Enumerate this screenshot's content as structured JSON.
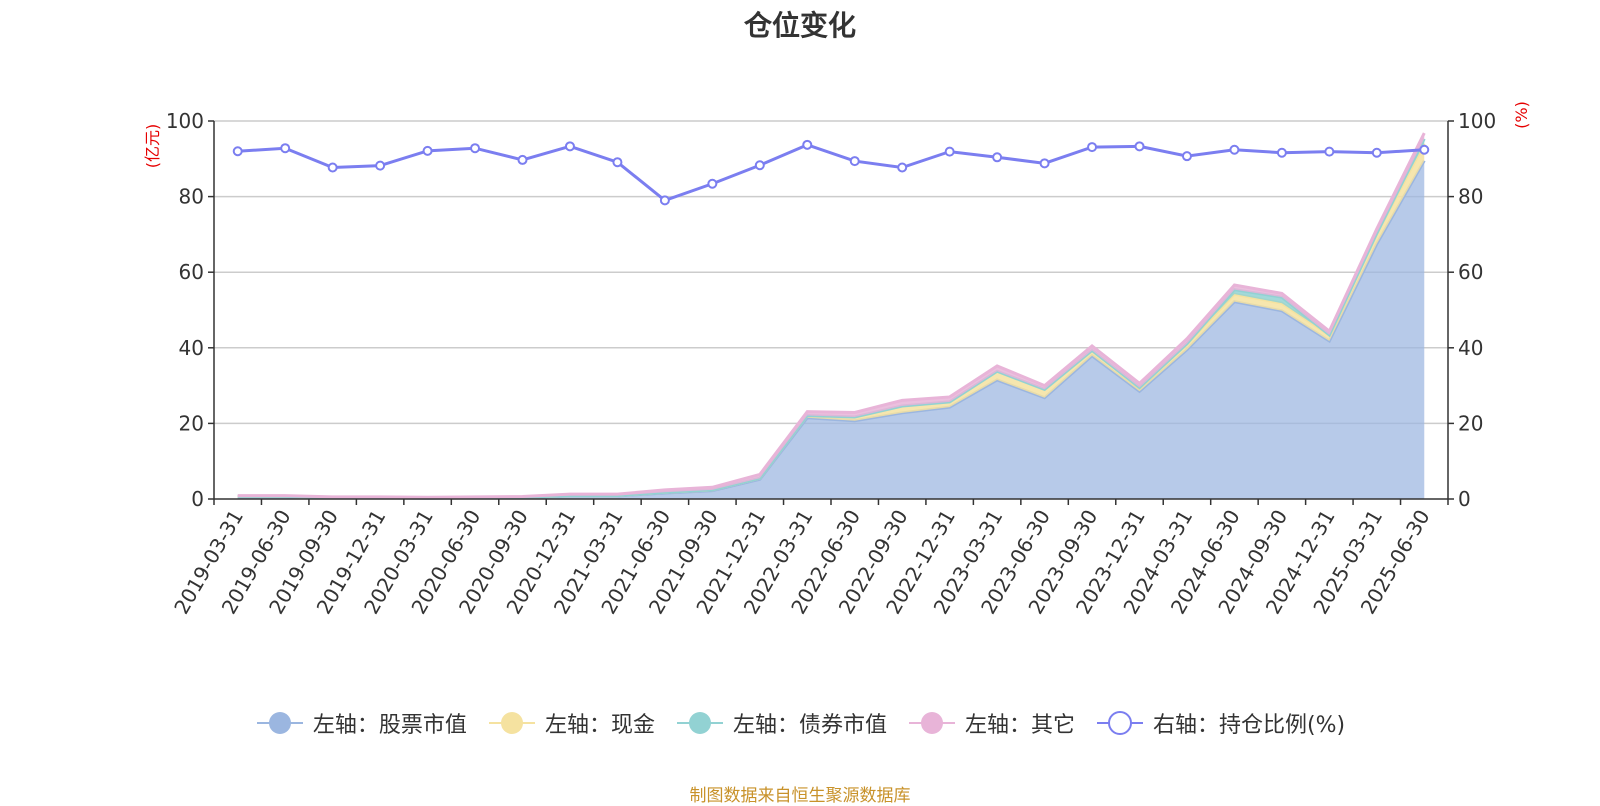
{
  "chart_data": {
    "type": "area",
    "title": "仓位变化",
    "ylabel_left": "(亿元)",
    "ylabel_right": "(%)",
    "ylim_left": [
      0,
      100
    ],
    "ylim_right": [
      0,
      100
    ],
    "yticks_left": [
      "0",
      "20",
      "40",
      "60",
      "80",
      "100"
    ],
    "yticks_right": [
      "0",
      "20",
      "40",
      "60",
      "80",
      "100"
    ],
    "grid": true,
    "legend_position": "bottom",
    "categories": [
      "2019-03-31",
      "2019-06-30",
      "2019-09-30",
      "2019-12-31",
      "2020-03-31",
      "2020-06-30",
      "2020-09-30",
      "2020-12-31",
      "2021-03-31",
      "2021-06-30",
      "2021-09-30",
      "2021-12-31",
      "2022-03-31",
      "2022-06-30",
      "2022-09-30",
      "2022-12-31",
      "2023-03-31",
      "2023-06-30",
      "2023-09-30",
      "2023-12-31",
      "2024-03-31",
      "2024-06-30",
      "2024-09-30",
      "2024-12-31",
      "2025-03-31",
      "2025-06-30"
    ],
    "series": [
      {
        "name": "左轴：股票市值",
        "axis": "left",
        "stacked": true,
        "color": "#9bb6e0",
        "values": [
          0.6,
          0.6,
          0.3,
          0.3,
          0.2,
          0.3,
          0.4,
          0.8,
          0.8,
          1.6,
          2.2,
          5.2,
          21.5,
          20.7,
          22.8,
          24.3,
          31.5,
          26.8,
          37.9,
          28.5,
          39.5,
          52.2,
          49.8,
          41.8,
          67.5,
          89.5
        ]
      },
      {
        "name": "左轴：现金",
        "axis": "left",
        "stacked": true,
        "color": "#f5e2a0",
        "values": [
          0.1,
          0.1,
          0.05,
          0.05,
          0.05,
          0.05,
          0.05,
          0.1,
          0.1,
          0.2,
          0.2,
          0.3,
          0.6,
          1.0,
          1.8,
          1.4,
          2.3,
          2.2,
          1.4,
          1.0,
          1.6,
          2.0,
          2.0,
          1.6,
          2.8,
          4.5
        ]
      },
      {
        "name": "左轴：债券市值",
        "axis": "left",
        "stacked": true,
        "color": "#92d2d3",
        "values": [
          0,
          0,
          0,
          0,
          0,
          0,
          0,
          0,
          0,
          0,
          0,
          0,
          0,
          0,
          0,
          0,
          0,
          0,
          0,
          0,
          0,
          1.2,
          1.6,
          0,
          0,
          1.3
        ]
      },
      {
        "name": "左轴：其它",
        "axis": "left",
        "stacked": true,
        "color": "#e8b4d8",
        "values": [
          0.2,
          0.2,
          0.2,
          0.2,
          0.2,
          0.2,
          0.2,
          0.4,
          0.4,
          0.6,
          0.7,
          1.0,
          1.0,
          1.2,
          1.5,
          1.3,
          1.4,
          1.0,
          1.2,
          1.1,
          1.3,
          1.2,
          1.0,
          1.0,
          1.2,
          1.5
        ]
      },
      {
        "name": "右轴：持仓比例(%)",
        "axis": "right",
        "type": "line",
        "color": "#7b7ef0",
        "values": [
          92.0,
          92.8,
          87.7,
          88.2,
          92.1,
          92.8,
          89.7,
          93.3,
          89.1,
          79.0,
          83.4,
          88.3,
          93.7,
          89.4,
          87.7,
          91.9,
          90.4,
          88.8,
          93.1,
          93.3,
          90.7,
          92.4,
          91.6,
          91.9,
          91.6,
          92.4
        ]
      }
    ]
  },
  "source_note": "制图数据来自恒生聚源数据库"
}
